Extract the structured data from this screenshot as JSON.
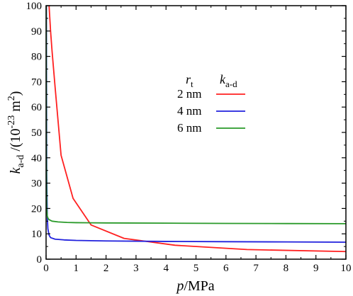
{
  "chart_data": {
    "type": "line",
    "xlabel": {
      "var": "p",
      "unit": "/MPa"
    },
    "ylabel": {
      "var": "k",
      "sub": "a-d",
      "mid": " /(10",
      "sup": "-23",
      "unit": " m",
      "sup2": "2",
      "end": ")"
    },
    "xlim": [
      0,
      10
    ],
    "ylim": [
      0,
      100
    ],
    "xticks": [
      "0",
      "1",
      "2",
      "3",
      "4",
      "5",
      "6",
      "7",
      "8",
      "9",
      "10"
    ],
    "yticks": [
      "0",
      "10",
      "20",
      "30",
      "40",
      "50",
      "60",
      "70",
      "80",
      "90",
      "100"
    ],
    "grid": false,
    "legend": {
      "placement": "center-right",
      "header_left": {
        "var": "r",
        "sub": "t"
      },
      "header_right": {
        "var": "k",
        "sub": "a-d"
      }
    },
    "series": [
      {
        "name": "2 nm",
        "color": "#ff2020",
        "x": [
          0.05,
          0.1,
          0.15,
          0.2,
          0.3,
          0.5,
          0.9,
          1.5,
          2.6,
          4.3,
          6.7,
          10
        ],
        "y": [
          160,
          100,
          90,
          82,
          68,
          41,
          24,
          13.5,
          8.2,
          5.5,
          3.8,
          3.0
        ]
      },
      {
        "name": "4 nm",
        "color": "#2020dd",
        "x": [
          0.01,
          0.02,
          0.04,
          0.06,
          0.1,
          0.15,
          0.3,
          0.6,
          1.0,
          2.0,
          4.0,
          6.0,
          8.0,
          10
        ],
        "y": [
          100,
          35,
          17,
          12,
          9.5,
          8.5,
          7.9,
          7.6,
          7.4,
          7.2,
          7.0,
          6.9,
          6.8,
          6.7
        ]
      },
      {
        "name": "6 nm",
        "color": "#2a9a2a",
        "x": [
          0.005,
          0.01,
          0.02,
          0.04,
          0.07,
          0.1,
          0.2,
          0.4,
          0.7,
          1.0,
          2.0,
          4.0,
          6.0,
          8.0,
          10
        ],
        "y": [
          100,
          40,
          20,
          17,
          16,
          15.6,
          15.0,
          14.7,
          14.5,
          14.4,
          14.3,
          14.2,
          14.1,
          14.05,
          14.0
        ]
      }
    ]
  }
}
